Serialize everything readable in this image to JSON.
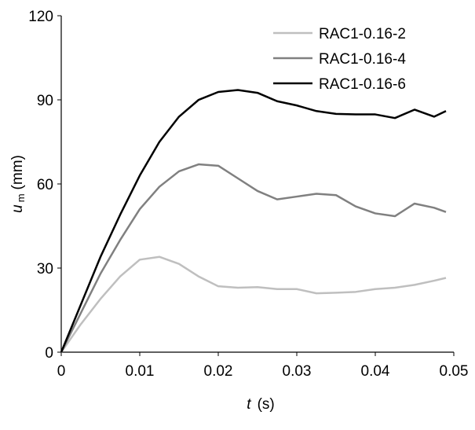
{
  "chart_data": {
    "type": "line",
    "x": [
      0,
      0.0025,
      0.005,
      0.0075,
      0.01,
      0.0125,
      0.015,
      0.0175,
      0.02,
      0.0225,
      0.025,
      0.0275,
      0.03,
      0.0325,
      0.035,
      0.0375,
      0.04,
      0.0425,
      0.045,
      0.0475,
      0.049
    ],
    "series": [
      {
        "name": "RAC1-0.16-2",
        "color": "#bfbfbf",
        "values": [
          0,
          10,
          19,
          27,
          33,
          34,
          31.5,
          27,
          23.5,
          23,
          23.2,
          22.5,
          22.5,
          21,
          21.2,
          21.5,
          22.5,
          23,
          24,
          25.5,
          26.5
        ]
      },
      {
        "name": "RAC1-0.16-4",
        "color": "#808080",
        "values": [
          0,
          14,
          28,
          40,
          51,
          59,
          64.5,
          67,
          66.5,
          62,
          57.5,
          54.5,
          55.5,
          56.5,
          56,
          52,
          49.5,
          48.5,
          53,
          51.5,
          50
        ]
      },
      {
        "name": "RAC1-0.16-6",
        "color": "#000000",
        "values": [
          0,
          17,
          34,
          49,
          63,
          75,
          84,
          90,
          92.8,
          93.5,
          92.5,
          89.5,
          88,
          86,
          85,
          84.8,
          84.8,
          83.5,
          86.5,
          84,
          86
        ]
      }
    ],
    "xlim": [
      0,
      0.05
    ],
    "xticks": [
      0,
      0.01,
      0.02,
      0.03,
      0.04,
      0.05
    ],
    "ylim": [
      0,
      120
    ],
    "yticks": [
      0,
      30,
      60,
      90,
      120
    ],
    "xlabel": {
      "symbol": "t",
      "unit": "(s)"
    },
    "ylabel": {
      "symbol": "u",
      "subscript": "m",
      "unit": "(mm)"
    },
    "legend": "top-right",
    "grid": false
  }
}
